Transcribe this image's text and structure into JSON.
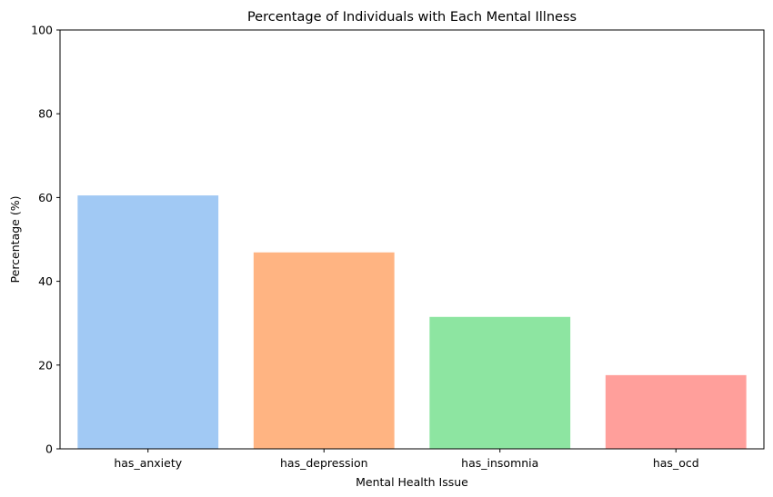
{
  "chart_data": {
    "type": "bar",
    "title": "Percentage of Individuals with Each Mental Illness",
    "xlabel": "Mental Health Issue",
    "ylabel": "Percentage (%)",
    "categories": [
      "has_anxiety",
      "has_depression",
      "has_insomnia",
      "has_ocd"
    ],
    "values": [
      60.5,
      46.9,
      31.5,
      17.6
    ],
    "colors": [
      "#a1c9f4",
      "#ffb482",
      "#8de5a1",
      "#ff9f9b"
    ],
    "ylim": [
      0,
      100
    ],
    "yticks": [
      0,
      20,
      40,
      60,
      80,
      100
    ],
    "grid": false,
    "legend": "none"
  }
}
